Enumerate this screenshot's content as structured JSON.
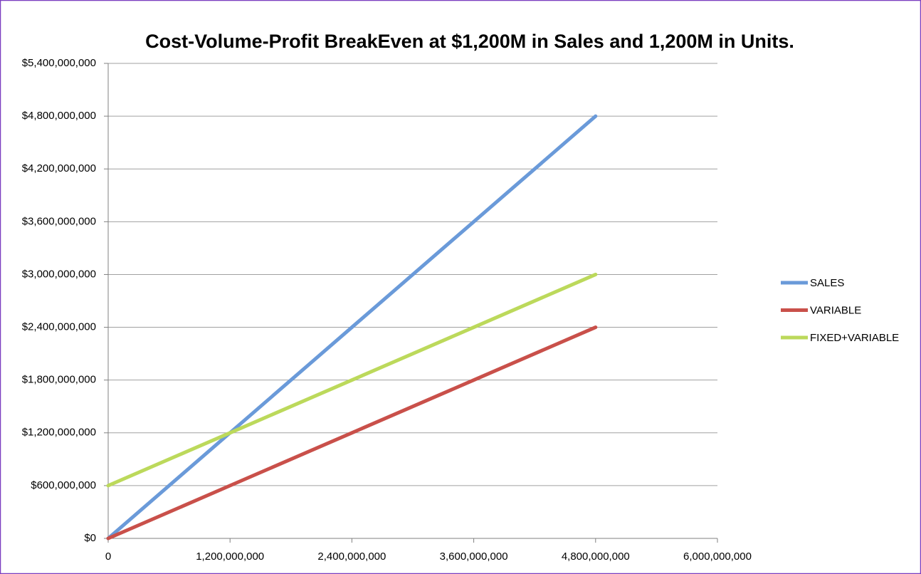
{
  "chart_data": {
    "type": "line",
    "title": "Cost-Volume-Profit BreakEven at $1,200M in Sales and 1,200M in Units.",
    "x": [
      0,
      1200000000,
      2400000000,
      3600000000,
      4800000000
    ],
    "series": [
      {
        "name": "SALES",
        "color": "#6a9ad9",
        "values": [
          0,
          1200000000,
          2400000000,
          3600000000,
          4800000000
        ]
      },
      {
        "name": "VARIABLE",
        "color": "#c9504a",
        "values": [
          0,
          600000000,
          1200000000,
          1800000000,
          2400000000
        ]
      },
      {
        "name": "FIXED+VARIABLE",
        "color": "#bcd95b",
        "values": [
          600000000,
          1200000000,
          1800000000,
          2400000000,
          3000000000
        ]
      }
    ],
    "xlim": [
      0,
      6000000000
    ],
    "xticks": [
      0,
      {
        "value": 1200000000,
        "label": "1,200,000,000"
      },
      {
        "value": 2400000000,
        "label": "2,400,000,000"
      },
      {
        "value": 3600000000,
        "label": "3,600,000,000"
      },
      {
        "value": 4800000000,
        "label": "4,800,000,000"
      },
      {
        "value": 6000000000,
        "label": "6,000,000,000"
      }
    ],
    "ylim": [
      0,
      5400000000
    ],
    "yticks": [
      {
        "value": 0,
        "label": "$0"
      },
      {
        "value": 600000000,
        "label": "$600,000,000"
      },
      {
        "value": 1200000000,
        "label": "$1,200,000,000"
      },
      {
        "value": 1800000000,
        "label": "$1,800,000,000"
      },
      {
        "value": 2400000000,
        "label": "$2,400,000,000"
      },
      {
        "value": 3000000000,
        "label": "$3,000,000,000"
      },
      {
        "value": 3600000000,
        "label": "$3,600,000,000"
      },
      {
        "value": 4200000000,
        "label": "$4,200,000,000"
      },
      {
        "value": 4800000000,
        "label": "$4,800,000,000"
      },
      {
        "value": 5400000000,
        "label": "$5,400,000,000"
      }
    ],
    "grid": true,
    "legend": "right"
  }
}
